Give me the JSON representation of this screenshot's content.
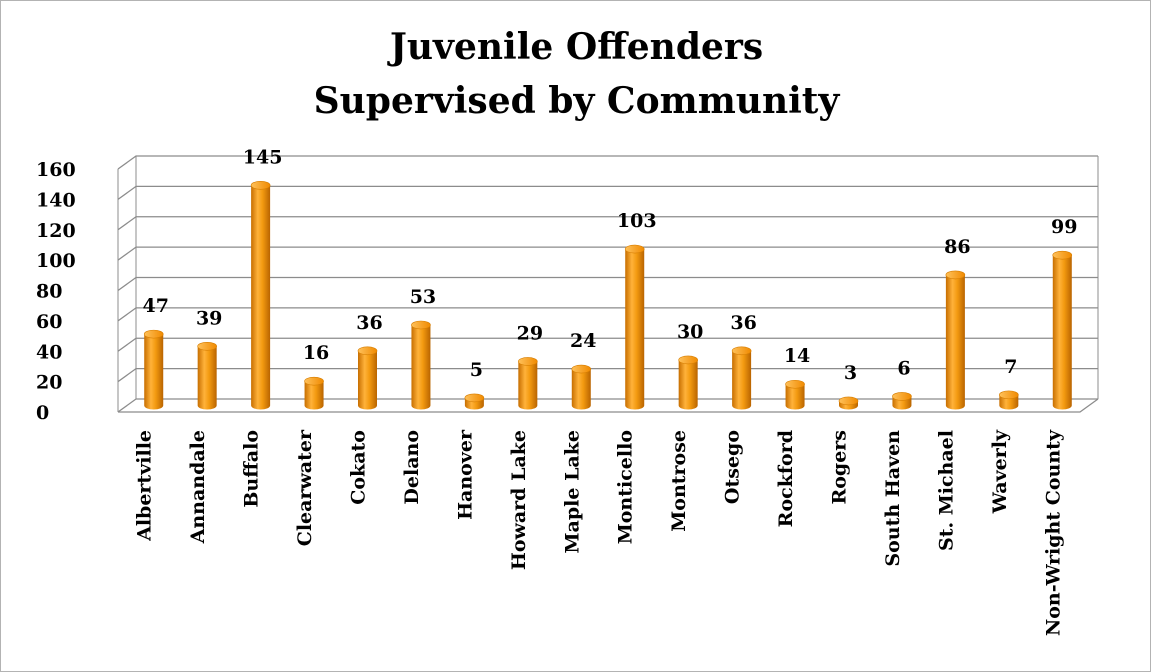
{
  "chart_data": {
    "type": "bar",
    "title": [
      "Juvenile Offenders",
      "Supervised by Community"
    ],
    "categories": [
      "Albertville",
      "Annandale",
      "Buffalo",
      "Clearwater",
      "Cokato",
      "Delano",
      "Hanover",
      "Howard Lake",
      "Maple Lake",
      "Monticello",
      "Montrose",
      "Otsego",
      "Rockford",
      "Rogers",
      "South Haven",
      "St. Michael",
      "Waverly",
      "Non-Wright County"
    ],
    "values": [
      47,
      39,
      145,
      16,
      36,
      53,
      5,
      29,
      24,
      103,
      30,
      36,
      14,
      3,
      6,
      86,
      7,
      99
    ],
    "ylim": [
      0,
      160
    ],
    "yticks": [
      0,
      20,
      40,
      60,
      80,
      100,
      120,
      140,
      160
    ],
    "grid": true,
    "legend": "none",
    "style": "3d-cylinder",
    "bar_color": "#f29a0d"
  }
}
